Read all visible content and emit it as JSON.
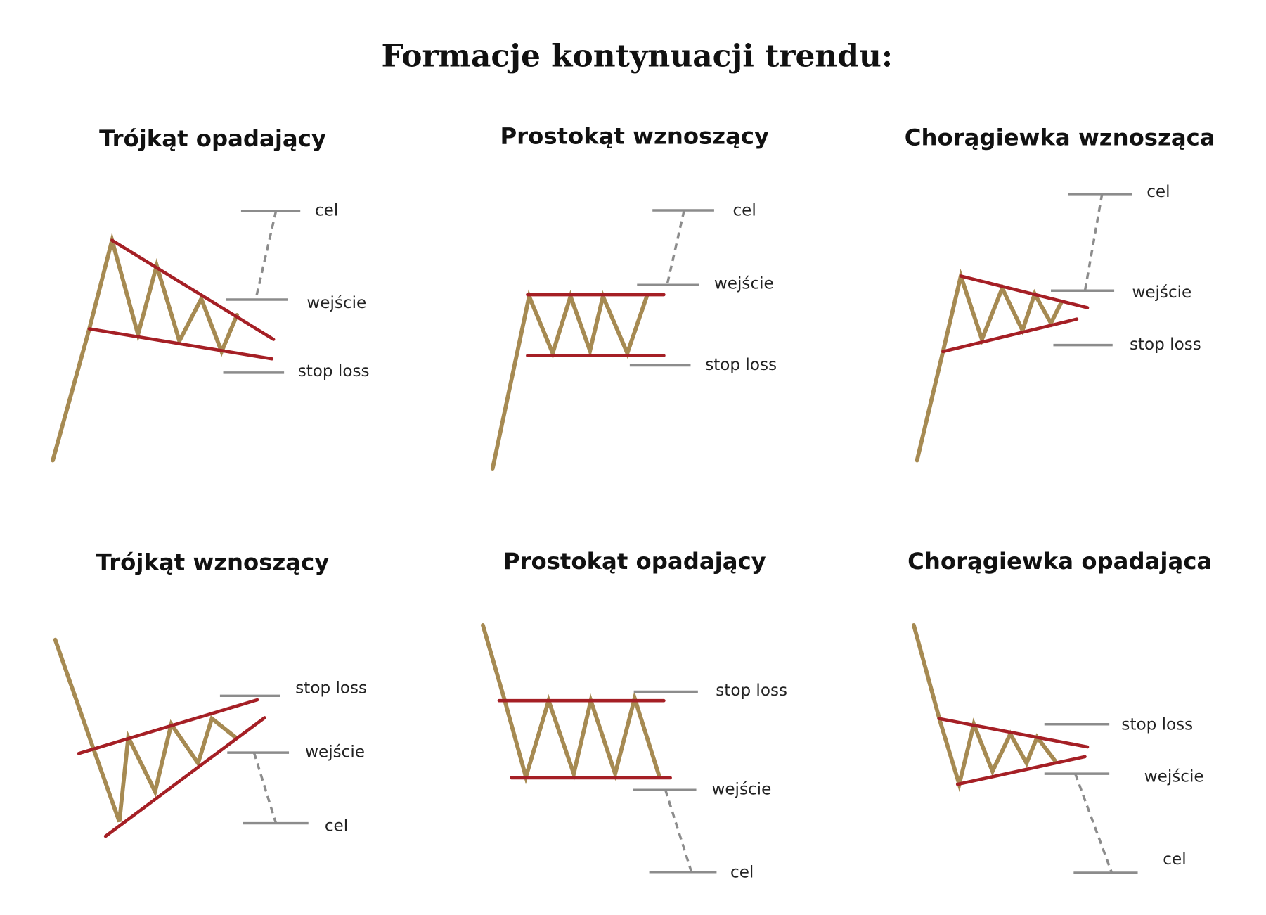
{
  "header": {
    "title": "Formacje kontynuacji trendu:"
  },
  "panels": [
    {
      "title": "Trójkąt opadający",
      "labels": {
        "target": "cel",
        "entry": "wejście",
        "stop": "stop loss"
      }
    },
    {
      "title": "Prostokąt wznoszący",
      "labels": {
        "target": "cel",
        "entry": "wejście",
        "stop": "stop loss"
      }
    },
    {
      "title": "Chorągiewka wznosząca",
      "labels": {
        "target": "cel",
        "entry": "wejście",
        "stop": "stop loss"
      }
    },
    {
      "title": "Trójkąt wznoszący",
      "labels": {
        "target": "cel",
        "entry": "wejście",
        "stop": "stop loss"
      }
    },
    {
      "title": "Prostokąt opadający",
      "labels": {
        "target": "cel",
        "entry": "wejście",
        "stop": "stop loss"
      }
    },
    {
      "title": "Chorągiewka opadająca",
      "labels": {
        "target": "cel",
        "entry": "wejście",
        "stop": "stop loss"
      }
    }
  ]
}
